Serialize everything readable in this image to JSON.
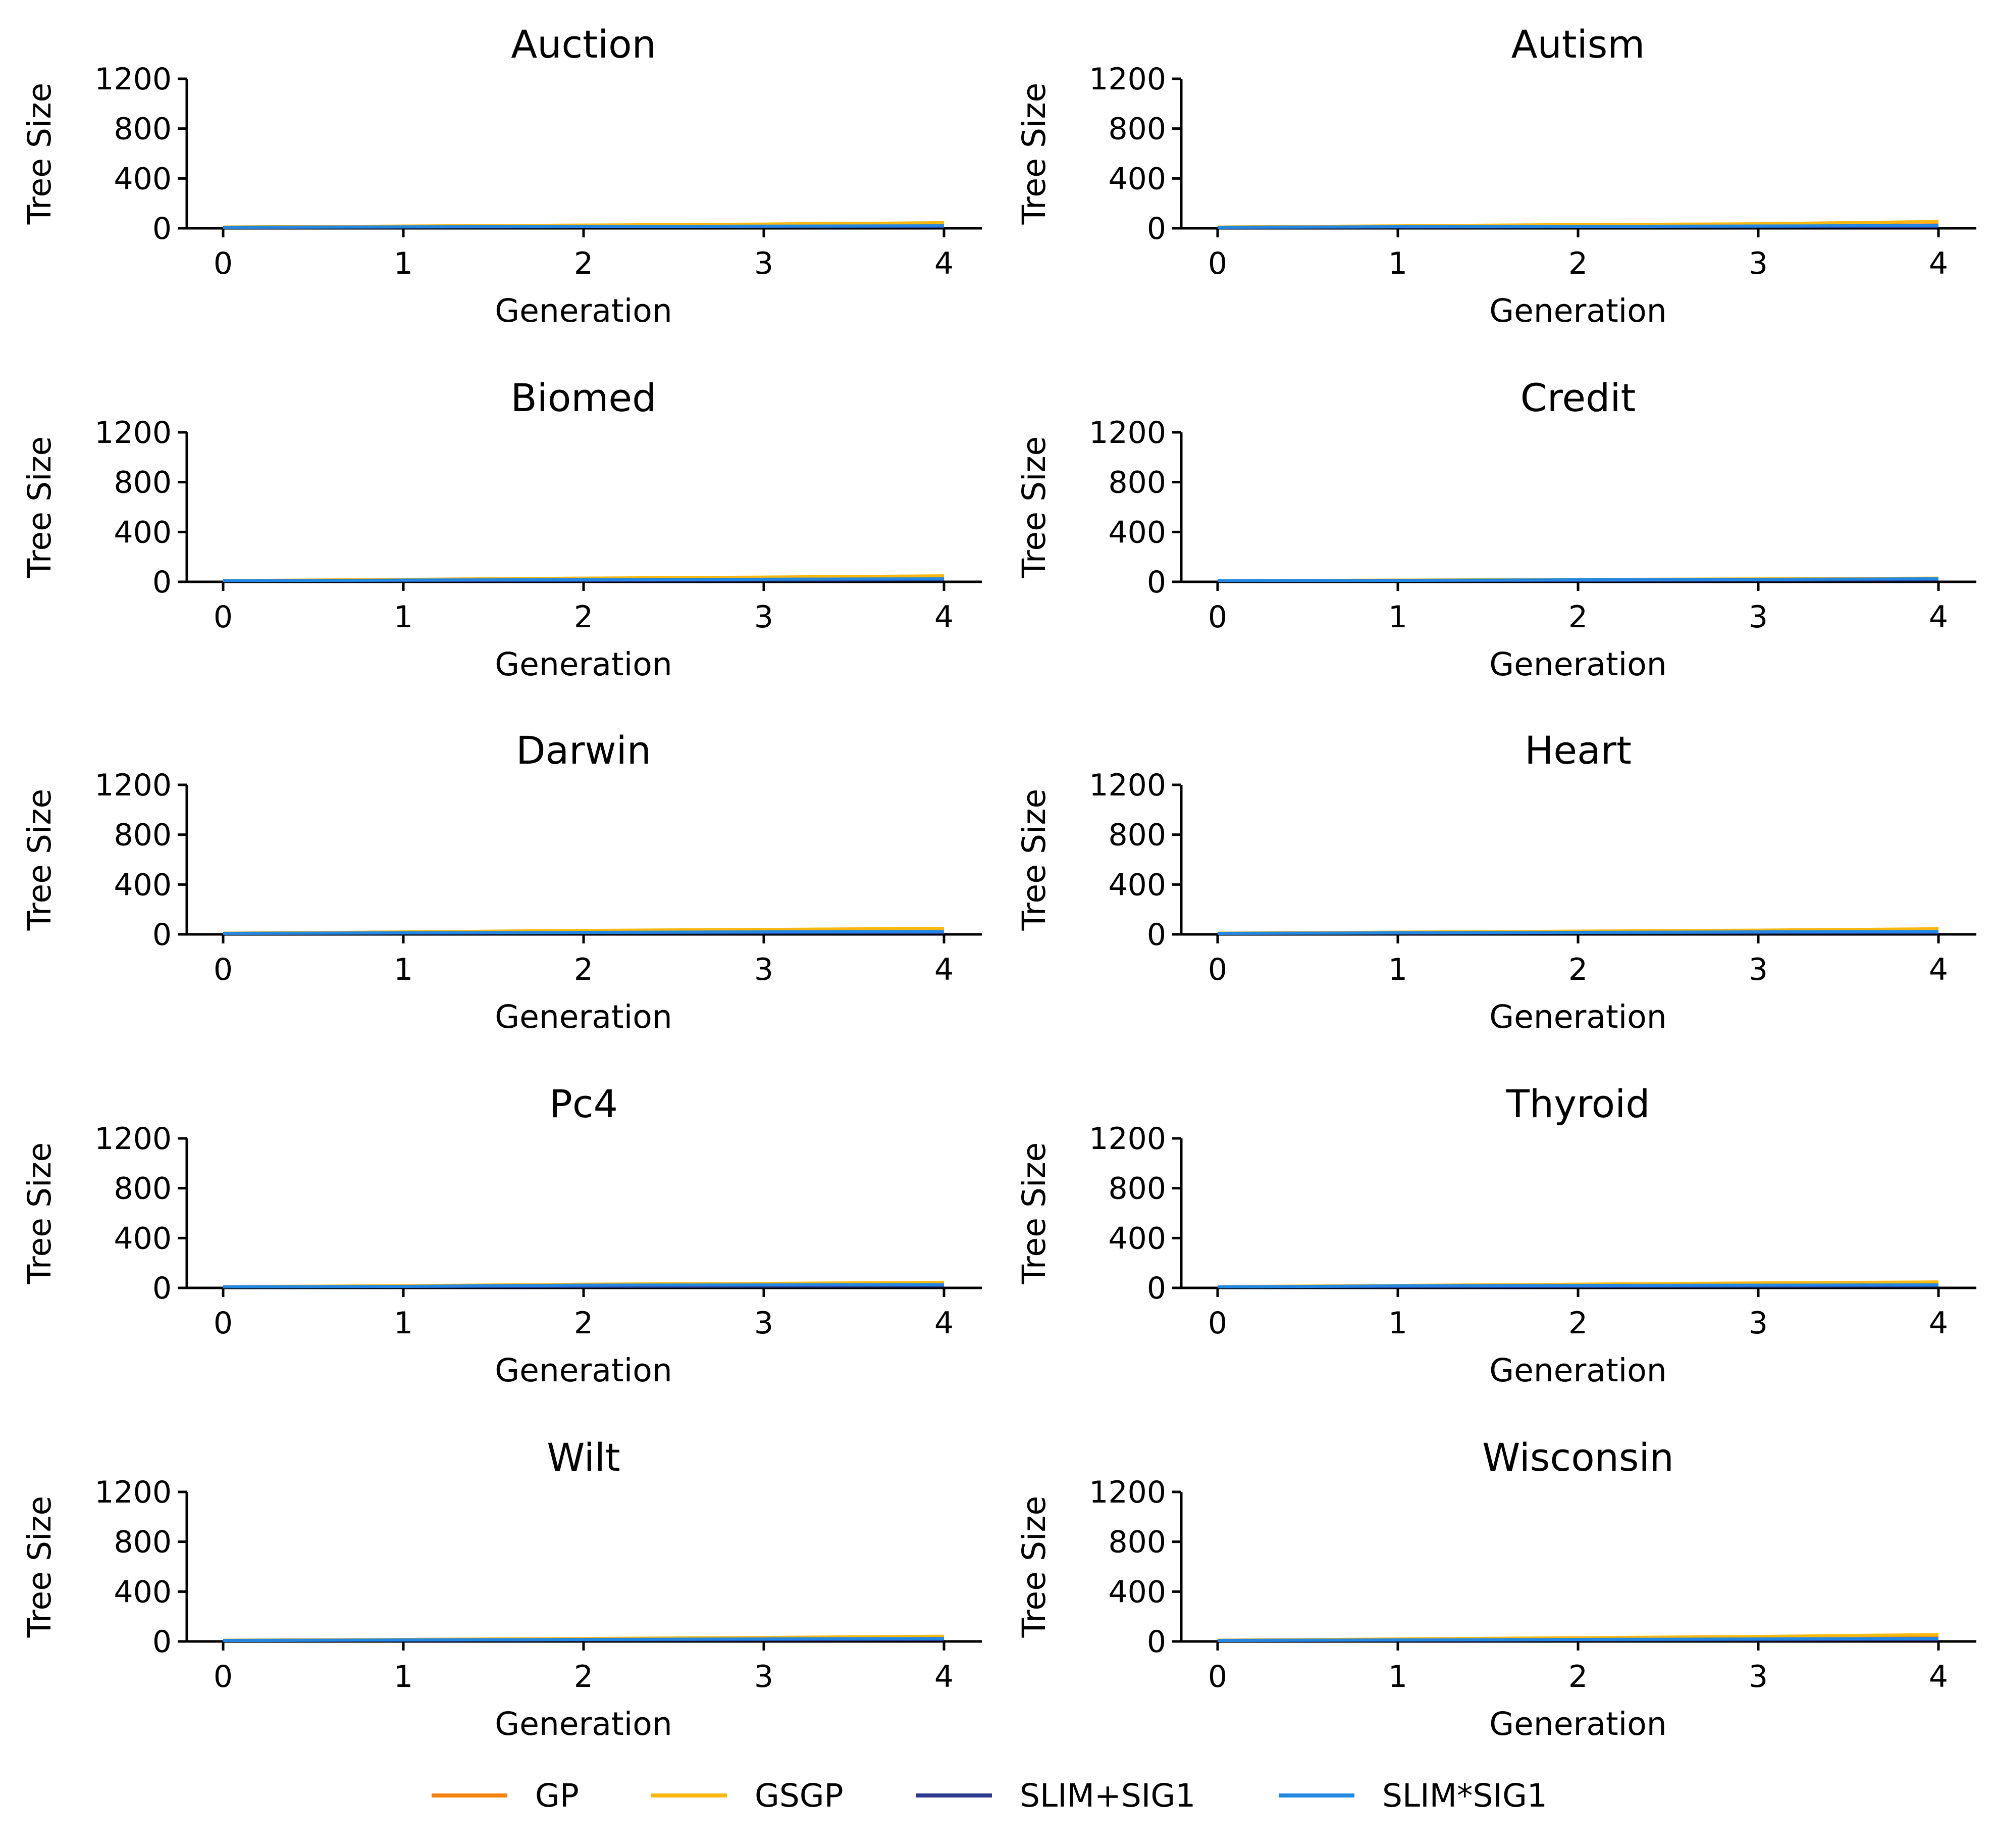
{
  "colors": {
    "GP": "#f5820e",
    "GSGP": "#f8b80f",
    "SLIM+SIG1": "#2b3a8f",
    "SLIM*SIG1": "#2288e3",
    "axis": "#000000"
  },
  "legend": {
    "items": [
      "GP",
      "GSGP",
      "SLIM+SIG1",
      "SLIM*SIG1"
    ],
    "placement": "bottom-center"
  },
  "chart_data": [
    {
      "type": "line",
      "title": "Auction",
      "xlabel": "Generation",
      "ylabel": "Tree Size",
      "x": [
        0,
        1,
        2,
        3,
        4
      ],
      "xticks": [
        "0",
        "1",
        "2",
        "3",
        "4"
      ],
      "ylim": [
        0,
        1200
      ],
      "yticks": [
        "0",
        "400",
        "800",
        "1200"
      ],
      "grid": false,
      "series": [
        {
          "name": "GP",
          "values": [
            8,
            12,
            16,
            20,
            26
          ]
        },
        {
          "name": "GSGP",
          "values": [
            10,
            18,
            26,
            34,
            45
          ]
        },
        {
          "name": "SLIM+SIG1",
          "values": [
            8,
            10,
            12,
            14,
            16
          ]
        },
        {
          "name": "SLIM*SIG1",
          "values": [
            8,
            11,
            14,
            17,
            20
          ]
        }
      ]
    },
    {
      "type": "line",
      "title": "Autism",
      "xlabel": "Generation",
      "ylabel": "Tree Size",
      "x": [
        0,
        1,
        2,
        3,
        4
      ],
      "xticks": [
        "0",
        "1",
        "2",
        "3",
        "4"
      ],
      "ylim": [
        0,
        1200
      ],
      "yticks": [
        "0",
        "400",
        "800",
        "1200"
      ],
      "grid": false,
      "series": [
        {
          "name": "GP",
          "values": [
            9,
            13,
            17,
            21,
            28
          ]
        },
        {
          "name": "GSGP",
          "values": [
            10,
            20,
            30,
            36,
            55
          ]
        },
        {
          "name": "SLIM+SIG1",
          "values": [
            8,
            10,
            12,
            14,
            16
          ]
        },
        {
          "name": "SLIM*SIG1",
          "values": [
            8,
            12,
            15,
            18,
            22
          ]
        }
      ]
    },
    {
      "type": "line",
      "title": "Biomed",
      "xlabel": "Generation",
      "ylabel": "Tree Size",
      "x": [
        0,
        1,
        2,
        3,
        4
      ],
      "xticks": [
        "0",
        "1",
        "2",
        "3",
        "4"
      ],
      "ylim": [
        0,
        1200
      ],
      "yticks": [
        "0",
        "400",
        "800",
        "1200"
      ],
      "grid": false,
      "series": [
        {
          "name": "GP",
          "values": [
            8,
            13,
            18,
            23,
            28
          ]
        },
        {
          "name": "GSGP",
          "values": [
            10,
            20,
            30,
            38,
            48
          ]
        },
        {
          "name": "SLIM+SIG1",
          "values": [
            8,
            10,
            12,
            14,
            16
          ]
        },
        {
          "name": "SLIM*SIG1",
          "values": [
            8,
            14,
            18,
            21,
            24
          ]
        }
      ]
    },
    {
      "type": "line",
      "title": "Credit",
      "xlabel": "Generation",
      "ylabel": "Tree Size",
      "x": [
        0,
        1,
        2,
        3,
        4
      ],
      "xticks": [
        "0",
        "1",
        "2",
        "3",
        "4"
      ],
      "ylim": [
        0,
        1200
      ],
      "yticks": [
        "0",
        "400",
        "800",
        "1200"
      ],
      "grid": false,
      "series": [
        {
          "name": "GP",
          "values": [
            8,
            12,
            16,
            20,
            24
          ]
        },
        {
          "name": "GSGP",
          "values": [
            9,
            14,
            19,
            24,
            30
          ]
        },
        {
          "name": "SLIM+SIG1",
          "values": [
            8,
            10,
            12,
            14,
            16
          ]
        },
        {
          "name": "SLIM*SIG1",
          "values": [
            8,
            12,
            16,
            20,
            24
          ]
        }
      ]
    },
    {
      "type": "line",
      "title": "Darwin",
      "xlabel": "Generation",
      "ylabel": "Tree Size",
      "x": [
        0,
        1,
        2,
        3,
        4
      ],
      "xticks": [
        "0",
        "1",
        "2",
        "3",
        "4"
      ],
      "ylim": [
        0,
        1200
      ],
      "yticks": [
        "0",
        "400",
        "800",
        "1200"
      ],
      "grid": false,
      "series": [
        {
          "name": "GP",
          "values": [
            8,
            13,
            18,
            23,
            28
          ]
        },
        {
          "name": "GSGP",
          "values": [
            10,
            20,
            32,
            40,
            48
          ]
        },
        {
          "name": "SLIM+SIG1",
          "values": [
            8,
            10,
            12,
            14,
            16
          ]
        },
        {
          "name": "SLIM*SIG1",
          "values": [
            8,
            12,
            16,
            20,
            24
          ]
        }
      ]
    },
    {
      "type": "line",
      "title": "Heart",
      "xlabel": "Generation",
      "ylabel": "Tree Size",
      "x": [
        0,
        1,
        2,
        3,
        4
      ],
      "xticks": [
        "0",
        "1",
        "2",
        "3",
        "4"
      ],
      "ylim": [
        0,
        1200
      ],
      "yticks": [
        "0",
        "400",
        "800",
        "1200"
      ],
      "grid": false,
      "series": [
        {
          "name": "GP",
          "values": [
            8,
            13,
            18,
            23,
            28
          ]
        },
        {
          "name": "GSGP",
          "values": [
            10,
            18,
            26,
            34,
            45
          ]
        },
        {
          "name": "SLIM+SIG1",
          "values": [
            8,
            10,
            12,
            14,
            16
          ]
        },
        {
          "name": "SLIM*SIG1",
          "values": [
            8,
            12,
            16,
            20,
            24
          ]
        }
      ]
    },
    {
      "type": "line",
      "title": "Pc4",
      "xlabel": "Generation",
      "ylabel": "Tree Size",
      "x": [
        0,
        1,
        2,
        3,
        4
      ],
      "xticks": [
        "0",
        "1",
        "2",
        "3",
        "4"
      ],
      "ylim": [
        0,
        1200
      ],
      "yticks": [
        "0",
        "400",
        "800",
        "1200"
      ],
      "grid": false,
      "series": [
        {
          "name": "GP",
          "values": [
            8,
            13,
            18,
            23,
            28
          ]
        },
        {
          "name": "GSGP",
          "values": [
            10,
            18,
            30,
            36,
            45
          ]
        },
        {
          "name": "SLIM+SIG1",
          "values": [
            8,
            10,
            12,
            14,
            16
          ]
        },
        {
          "name": "SLIM*SIG1",
          "values": [
            8,
            12,
            22,
            24,
            26
          ]
        }
      ]
    },
    {
      "type": "line",
      "title": "Thyroid",
      "xlabel": "Generation",
      "ylabel": "Tree Size",
      "x": [
        0,
        1,
        2,
        3,
        4
      ],
      "xticks": [
        "0",
        "1",
        "2",
        "3",
        "4"
      ],
      "ylim": [
        0,
        1200
      ],
      "yticks": [
        "0",
        "400",
        "800",
        "1200"
      ],
      "grid": false,
      "series": [
        {
          "name": "GP",
          "values": [
            8,
            13,
            18,
            23,
            28
          ]
        },
        {
          "name": "GSGP",
          "values": [
            10,
            20,
            30,
            40,
            48
          ]
        },
        {
          "name": "SLIM+SIG1",
          "values": [
            8,
            10,
            12,
            14,
            16
          ]
        },
        {
          "name": "SLIM*SIG1",
          "values": [
            8,
            16,
            20,
            22,
            24
          ]
        }
      ]
    },
    {
      "type": "line",
      "title": "Wilt",
      "xlabel": "Generation",
      "ylabel": "Tree Size",
      "x": [
        0,
        1,
        2,
        3,
        4
      ],
      "xticks": [
        "0",
        "1",
        "2",
        "3",
        "4"
      ],
      "ylim": [
        0,
        1200
      ],
      "yticks": [
        "0",
        "400",
        "800",
        "1200"
      ],
      "grid": false,
      "series": [
        {
          "name": "GP",
          "values": [
            8,
            12,
            16,
            20,
            26
          ]
        },
        {
          "name": "GSGP",
          "values": [
            10,
            16,
            24,
            32,
            42
          ]
        },
        {
          "name": "SLIM+SIG1",
          "values": [
            8,
            10,
            12,
            14,
            16
          ]
        },
        {
          "name": "SLIM*SIG1",
          "values": [
            8,
            12,
            16,
            20,
            24
          ]
        }
      ]
    },
    {
      "type": "line",
      "title": "Wisconsin",
      "xlabel": "Generation",
      "ylabel": "Tree Size",
      "x": [
        0,
        1,
        2,
        3,
        4
      ],
      "xticks": [
        "0",
        "1",
        "2",
        "3",
        "4"
      ],
      "ylim": [
        0,
        1200
      ],
      "yticks": [
        "0",
        "400",
        "800",
        "1200"
      ],
      "grid": false,
      "series": [
        {
          "name": "GP",
          "values": [
            8,
            13,
            18,
            23,
            30
          ]
        },
        {
          "name": "GSGP",
          "values": [
            10,
            20,
            30,
            40,
            55
          ]
        },
        {
          "name": "SLIM+SIG1",
          "values": [
            8,
            10,
            12,
            14,
            16
          ]
        },
        {
          "name": "SLIM*SIG1",
          "values": [
            8,
            12,
            16,
            20,
            24
          ]
        }
      ]
    }
  ]
}
